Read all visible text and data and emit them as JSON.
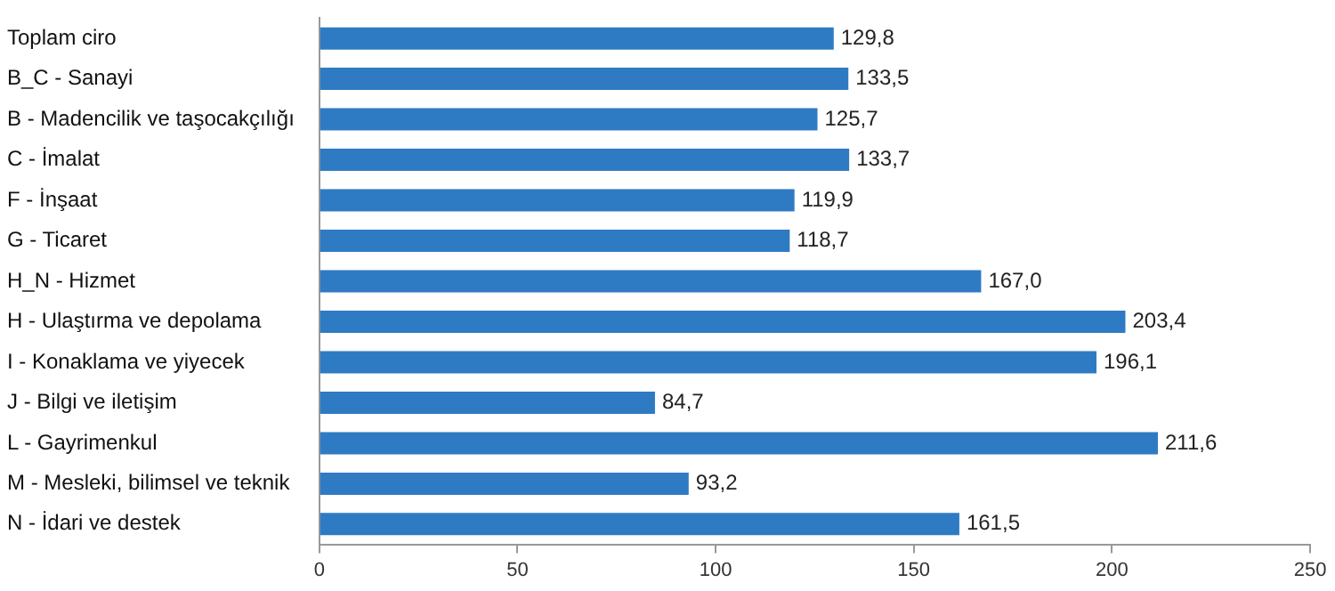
{
  "chart_data": {
    "type": "bar",
    "orientation": "horizontal",
    "categories": [
      "Toplam ciro",
      "B_C - Sanayi",
      "B - Madencilik ve taşocakçılığı",
      "C - İmalat",
      "F - İnşaat",
      "G - Ticaret",
      "H_N - Hizmet",
      "H - Ulaştırma ve depolama",
      "I - Konaklama ve yiyecek",
      "J - Bilgi ve iletişim",
      "L - Gayrimenkul",
      "M - Mesleki, bilimsel ve teknik",
      "N - İdari ve destek"
    ],
    "values": [
      129.8,
      133.5,
      125.7,
      133.7,
      119.9,
      118.7,
      167.0,
      203.4,
      196.1,
      84.7,
      211.6,
      93.2,
      161.5
    ],
    "value_labels": [
      "129,8",
      "133,5",
      "125,7",
      "133,7",
      "119,9",
      "118,7",
      "167,0",
      "203,4",
      "196,1",
      "84,7",
      "211,6",
      "93,2",
      "161,5"
    ],
    "color": "#2e7bc4",
    "xlim": [
      0,
      250
    ],
    "xticks": [
      0,
      50,
      100,
      150,
      200,
      250
    ],
    "grid": false,
    "legend": false
  }
}
